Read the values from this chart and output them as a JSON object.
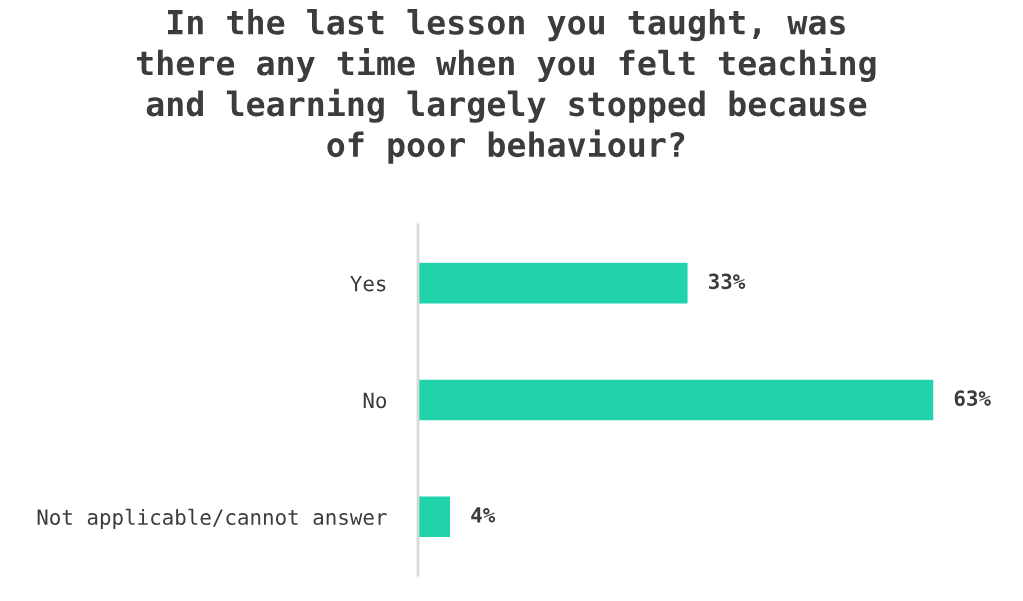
{
  "chart_data": {
    "type": "bar",
    "orientation": "horizontal",
    "title": "In the last lesson you taught, was\nthere any time when you felt teaching\nand learning largely stopped because\nof poor behaviour?",
    "categories": [
      "Yes",
      "No",
      "Not applicable/cannot answer"
    ],
    "values": [
      33,
      63,
      4
    ],
    "value_labels": [
      "33%",
      "63%",
      "4%"
    ],
    "color": "#21d3aa"
  }
}
